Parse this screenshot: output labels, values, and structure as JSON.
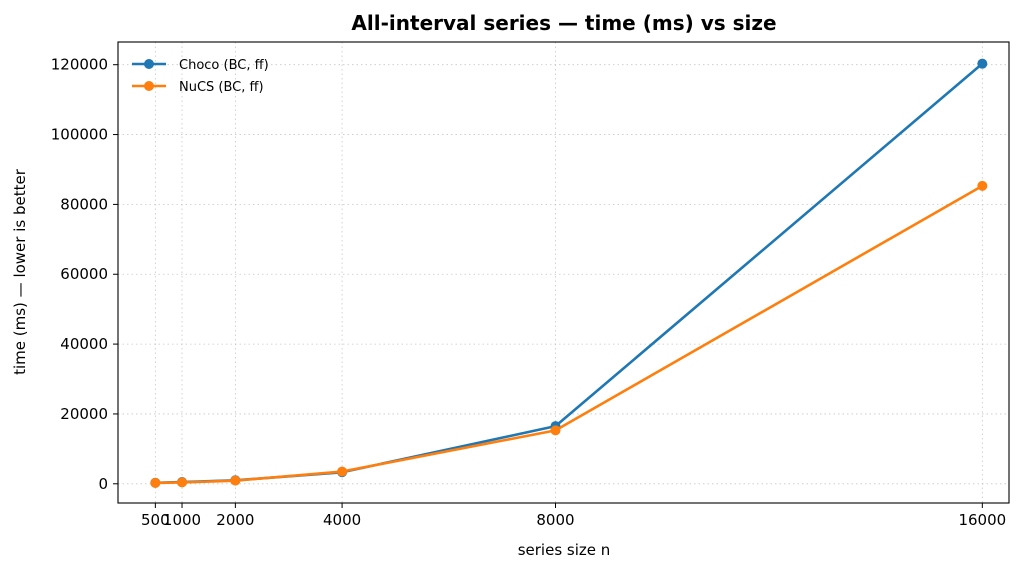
{
  "chart_data": {
    "type": "line",
    "title": "All-interval series — time (ms) vs size",
    "xlabel": "series size n",
    "ylabel": "time (ms) — lower is better",
    "x": [
      500,
      1000,
      2000,
      4000,
      8000,
      16000
    ],
    "x_ticks": [
      500,
      1000,
      2000,
      4000,
      8000,
      16000
    ],
    "y_ticks": [
      0,
      20000,
      40000,
      60000,
      80000,
      100000,
      120000
    ],
    "xlim": [
      -200,
      16500
    ],
    "ylim": [
      -5500,
      126500
    ],
    "grid": true,
    "legend_position": "top-left",
    "series": [
      {
        "name": "Choco (BC, ff)",
        "color": "#1f77b4",
        "values": [
          300,
          500,
          1000,
          3300,
          16500,
          120300
        ]
      },
      {
        "name": "NuCS (BC, ff)",
        "color": "#ff7f0e",
        "values": [
          250,
          400,
          900,
          3500,
          15300,
          85300
        ]
      }
    ]
  }
}
